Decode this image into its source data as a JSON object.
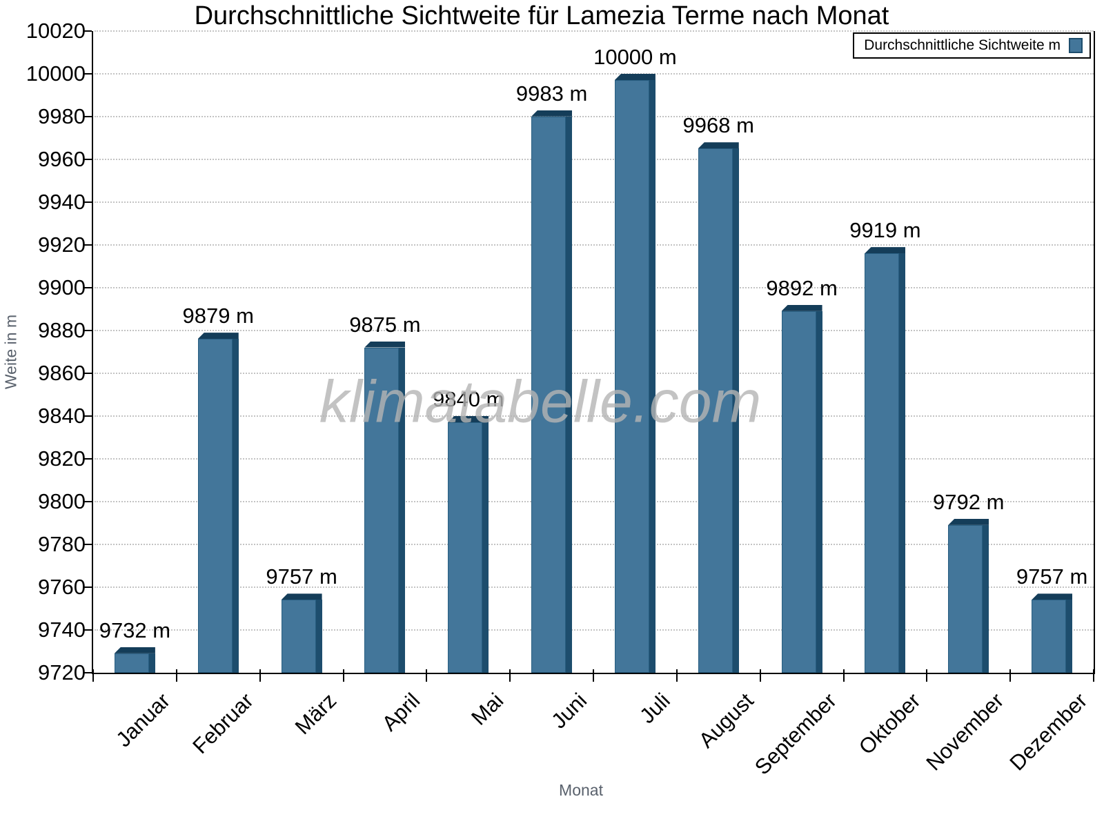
{
  "title": "Durchschnittliche Sichtweite für Lamezia Terme nach Monat",
  "watermark": "klimatabelle.com",
  "legend": {
    "label": "Durchschnittliche Sichtweite m"
  },
  "axes": {
    "xlabel": "Monat",
    "ylabel": "Weite in m"
  },
  "chart_data": {
    "type": "bar",
    "title": "Durchschnittliche Sichtweite für Lamezia Terme nach Monat",
    "xlabel": "Monat",
    "ylabel": "Weite in m",
    "series_name": "Durchschnittliche Sichtweite m",
    "categories": [
      "Januar",
      "Februar",
      "März",
      "April",
      "Mai",
      "Juni",
      "Juli",
      "August",
      "September",
      "Oktober",
      "November",
      "Dezember"
    ],
    "values": [
      9732,
      9879,
      9757,
      9875,
      9840,
      9983,
      10000,
      9968,
      9892,
      9919,
      9792,
      9757
    ],
    "value_labels": [
      "9732 m",
      "9879 m",
      "9757 m",
      "9875 m",
      "9840 m",
      "9983 m",
      "10000 m",
      "9968 m",
      "9892 m",
      "9919 m",
      "9792 m",
      "9757 m"
    ],
    "unit": "m",
    "ylim": [
      9720,
      10020
    ],
    "ytick_step": 20,
    "yticks": [
      9720,
      9740,
      9760,
      9780,
      9800,
      9820,
      9840,
      9860,
      9880,
      9900,
      9920,
      9940,
      9960,
      9980,
      10000,
      10020
    ],
    "grid": "horizontal dotted",
    "legend_position": "top-right",
    "colors": {
      "bar_fill": "#43769a",
      "bar_side": "#1d4d6d",
      "bar_top": "#143d59",
      "bar_border": "#275d80",
      "grid": "#c3c3c3",
      "axis_line": "#000000",
      "tick_text": "#000000",
      "axis_title_text": "#59616c",
      "watermark_text": "#b5b5b5"
    }
  }
}
